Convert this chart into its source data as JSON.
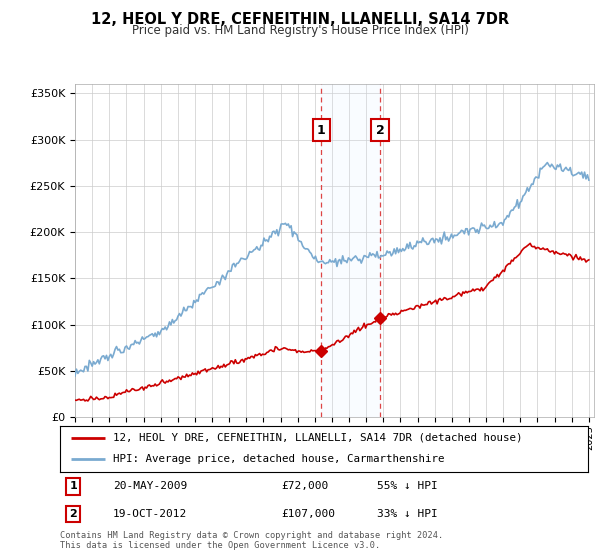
{
  "title": "12, HEOL Y DRE, CEFNEITHIN, LLANELLI, SA14 7DR",
  "subtitle": "Price paid vs. HM Land Registry's House Price Index (HPI)",
  "ylim": [
    0,
    360000
  ],
  "yticks": [
    0,
    50000,
    100000,
    150000,
    200000,
    250000,
    300000,
    350000
  ],
  "ytick_labels": [
    "£0",
    "£50K",
    "£100K",
    "£150K",
    "£200K",
    "£250K",
    "£300K",
    "£350K"
  ],
  "legend_line1": "12, HEOL Y DRE, CEFNEITHIN, LLANELLI, SA14 7DR (detached house)",
  "legend_line2": "HPI: Average price, detached house, Carmarthenshire",
  "sale1_label": "1",
  "sale1_date": "20-MAY-2009",
  "sale1_price": "£72,000",
  "sale1_hpi": "55% ↓ HPI",
  "sale1_year": 2009.38,
  "sale1_value": 72000,
  "sale2_label": "2",
  "sale2_date": "19-OCT-2012",
  "sale2_price": "£107,000",
  "sale2_hpi": "33% ↓ HPI",
  "sale2_year": 2012.8,
  "sale2_value": 107000,
  "hpi_color": "#7aaad0",
  "sale_color": "#cc0000",
  "shade_color": "#ddeeff",
  "footer": "Contains HM Land Registry data © Crown copyright and database right 2024.\nThis data is licensed under the Open Government Licence v3.0.",
  "background_color": "#ffffff",
  "grid_color": "#cccccc"
}
